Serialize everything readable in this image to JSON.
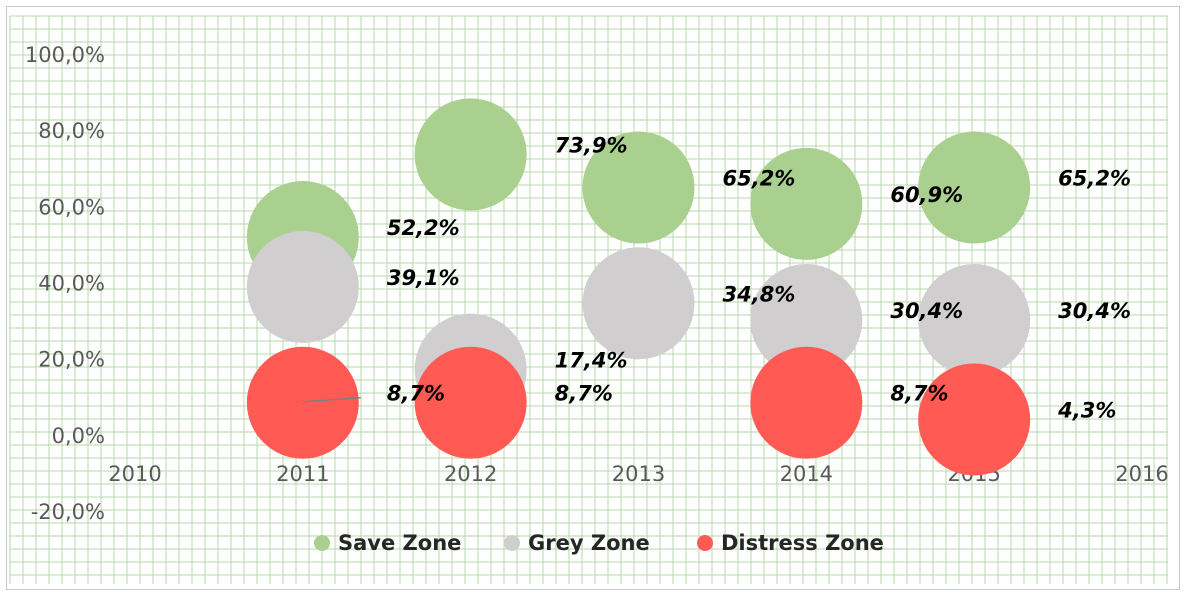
{
  "chart_data": {
    "type": "bubble",
    "x_ticks": [
      "2010",
      "2011",
      "2012",
      "2013",
      "2014",
      "2015",
      "2016"
    ],
    "y_ticks": [
      "-20,0%",
      "0,0%",
      "20,0%",
      "40,0%",
      "60,0%",
      "80,0%",
      "100,0%"
    ],
    "xlim": [
      2010,
      2016
    ],
    "ylim": [
      -20,
      100
    ],
    "grid": true,
    "legend_position": "bottom",
    "series": [
      {
        "name": "Save Zone",
        "color": "#a9d08e",
        "points": [
          {
            "x": 2011,
            "y": 52.2,
            "label": "52,2%"
          },
          {
            "x": 2012,
            "y": 73.9,
            "label": "73,9%"
          },
          {
            "x": 2013,
            "y": 65.2,
            "label": "65,2%"
          },
          {
            "x": 2014,
            "y": 60.9,
            "label": "60,9%"
          },
          {
            "x": 2015,
            "y": 65.2,
            "label": "65,2%"
          }
        ]
      },
      {
        "name": "Grey Zone",
        "color": "#d0cece",
        "points": [
          {
            "x": 2011,
            "y": 39.1,
            "label": "39,1%"
          },
          {
            "x": 2012,
            "y": 17.4,
            "label": "17,4%"
          },
          {
            "x": 2013,
            "y": 34.8,
            "label": "34,8%"
          },
          {
            "x": 2014,
            "y": 30.4,
            "label": "30,4%"
          },
          {
            "x": 2015,
            "y": 30.4,
            "label": "30,4%"
          }
        ]
      },
      {
        "name": "Distress Zone",
        "color": "#ff5a54",
        "points": [
          {
            "x": 2011,
            "y": 8.7,
            "label": "8,7%"
          },
          {
            "x": 2012,
            "y": 8.7,
            "label": "8,7%"
          },
          {
            "x": 2014,
            "y": 8.7,
            "label": "8,7%"
          },
          {
            "x": 2015,
            "y": 4.3,
            "label": "4,3%"
          }
        ]
      }
    ]
  },
  "colors": {
    "grid_line": "#b7d7a8",
    "grid_bg": "#ffffff",
    "axis_text": "#595959",
    "label_text": "#000000",
    "frame": "#c9c9c9"
  }
}
